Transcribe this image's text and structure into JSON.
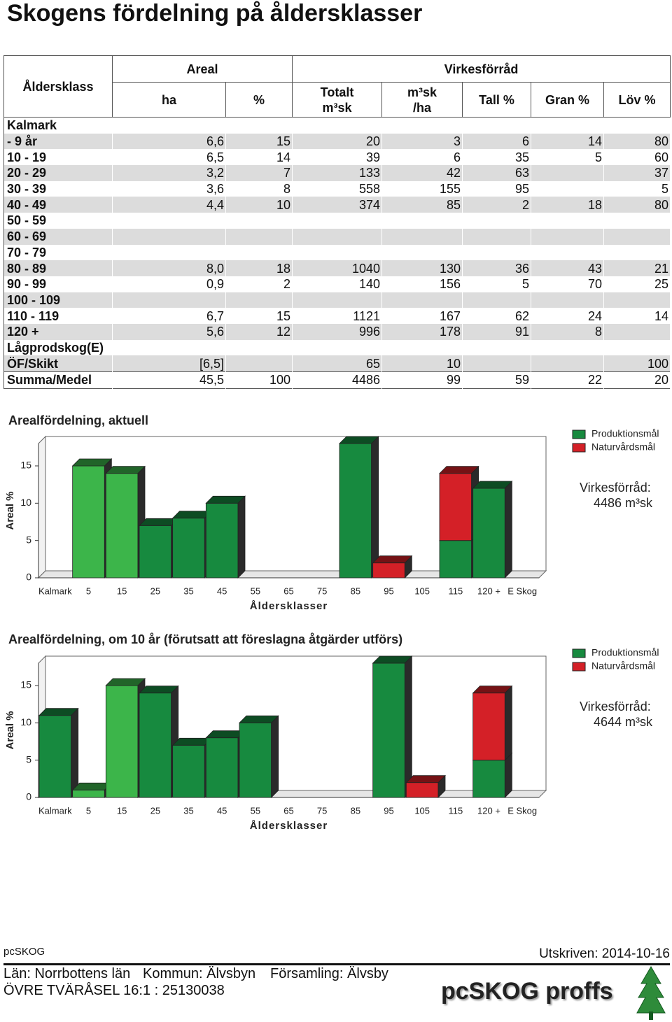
{
  "title": "Skogens fördelning på åldersklasser",
  "table": {
    "col_header": "Åldersklass",
    "group_areal": "Areal",
    "group_virke": "Virkesförråd",
    "columns": [
      "ha",
      "%",
      "Totalt\nm³sk",
      "m³sk\n/ha",
      "Tall %",
      "Gran %",
      "Löv %"
    ],
    "rows": [
      [
        "Kalmark",
        null,
        null,
        null,
        null,
        null,
        null,
        null
      ],
      [
        "- 9 år",
        "6,6",
        "15",
        "20",
        "3",
        "6",
        "14",
        "80"
      ],
      [
        "10 - 19",
        "6,5",
        "14",
        "39",
        "6",
        "35",
        "5",
        "60"
      ],
      [
        "20 - 29",
        "3,2",
        "7",
        "133",
        "42",
        "63",
        null,
        "37"
      ],
      [
        "30 - 39",
        "3,6",
        "8",
        "558",
        "155",
        "95",
        null,
        "5"
      ],
      [
        "40 - 49",
        "4,4",
        "10",
        "374",
        "85",
        "2",
        "18",
        "80"
      ],
      [
        "50 - 59",
        null,
        null,
        null,
        null,
        null,
        null,
        null
      ],
      [
        "60 - 69",
        null,
        null,
        null,
        null,
        null,
        null,
        null
      ],
      [
        "70 - 79",
        null,
        null,
        null,
        null,
        null,
        null,
        null
      ],
      [
        "80 - 89",
        "8,0",
        "18",
        "1040",
        "130",
        "36",
        "43",
        "21"
      ],
      [
        "90 - 99",
        "0,9",
        "2",
        "140",
        "156",
        "5",
        "70",
        "25"
      ],
      [
        "100 - 109",
        null,
        null,
        null,
        null,
        null,
        null,
        null
      ],
      [
        "110 - 119",
        "6,7",
        "15",
        "1121",
        "167",
        "62",
        "24",
        "14"
      ],
      [
        "120 +",
        "5,6",
        "12",
        "996",
        "178",
        "91",
        "8",
        null
      ],
      [
        "Lågprodskog(E)",
        null,
        null,
        null,
        null,
        null,
        null,
        null
      ],
      [
        "ÖF/Skikt",
        "[6,5]",
        null,
        "65",
        "10",
        null,
        null,
        "100"
      ],
      [
        "Summa/Medel",
        "45,5",
        "100",
        "4486",
        "99",
        "59",
        "22",
        "20"
      ]
    ]
  },
  "chart_data": [
    {
      "type": "bar",
      "stacked": true,
      "title": "Arealfördelning, aktuell",
      "x_label": "Åldersklasser",
      "y_label": "Areal %",
      "categories": [
        "Kalmark",
        "5",
        "15",
        "25",
        "35",
        "45",
        "55",
        "65",
        "75",
        "85",
        "95",
        "105",
        "115",
        "120 +",
        "E Skog"
      ],
      "series": [
        {
          "name": "Produktionsmål",
          "color": "#178a3f",
          "colors": [
            "#178a3f",
            "#3cb54a",
            "#3cb54a",
            "#178a3f",
            "#178a3f",
            "#178a3f",
            "#178a3f",
            "#178a3f",
            "#178a3f",
            "#178a3f",
            "#178a3f",
            "#178a3f",
            "#178a3f",
            "#178a3f",
            "#178a3f"
          ],
          "values": [
            0,
            15,
            14,
            7,
            8,
            10,
            0,
            0,
            0,
            18,
            0,
            0,
            5,
            12,
            0
          ]
        },
        {
          "name": "Naturvårdsmål",
          "color": "#d42027",
          "values": [
            0,
            0,
            0,
            0,
            0,
            0,
            0,
            0,
            0,
            0,
            2,
            0,
            9,
            0,
            0
          ]
        }
      ],
      "ylim": [
        0,
        18
      ],
      "yticks": [
        0,
        5,
        10,
        15
      ],
      "annotations": [
        "Virkesförråd:",
        "4486 m³sk"
      ]
    },
    {
      "type": "bar",
      "stacked": true,
      "title": "Arealfördelning, om 10 år (förutsatt att föreslagna åtgärder utförs)",
      "x_label": "Åldersklasser",
      "y_label": "Areal %",
      "categories": [
        "Kalmark",
        "5",
        "15",
        "25",
        "35",
        "45",
        "55",
        "65",
        "75",
        "85",
        "95",
        "105",
        "115",
        "120 +",
        "E Skog"
      ],
      "series": [
        {
          "name": "Produktionsmål",
          "color": "#178a3f",
          "colors": [
            "#178a3f",
            "#3cb54a",
            "#3cb54a",
            "#178a3f",
            "#178a3f",
            "#178a3f",
            "#178a3f",
            "#178a3f",
            "#178a3f",
            "#178a3f",
            "#178a3f",
            "#178a3f",
            "#178a3f",
            "#178a3f",
            "#178a3f"
          ],
          "values": [
            11,
            1,
            15,
            14,
            7,
            8,
            10,
            0,
            0,
            0,
            18,
            0,
            0,
            5,
            0
          ]
        },
        {
          "name": "Naturvårdsmål",
          "color": "#d42027",
          "values": [
            0,
            0,
            0,
            0,
            0,
            0,
            0,
            0,
            0,
            0,
            0,
            2,
            0,
            9,
            0
          ]
        }
      ],
      "ylim": [
        0,
        18
      ],
      "yticks": [
        0,
        5,
        10,
        15
      ],
      "annotations": [
        "Virkesförråd:",
        "4644 m³sk"
      ]
    }
  ],
  "footer": {
    "app": "pcSKOG",
    "printed": "Utskriven: 2014-10-16",
    "county": "Län: Norrbottens län",
    "municipality": "Kommun: Älvsbyn",
    "parish": "Församling: Älvsby",
    "property": "ÖVRE TVÄRÅSEL 16:1 : 25130038",
    "logo": "pcSKOG proffs"
  }
}
